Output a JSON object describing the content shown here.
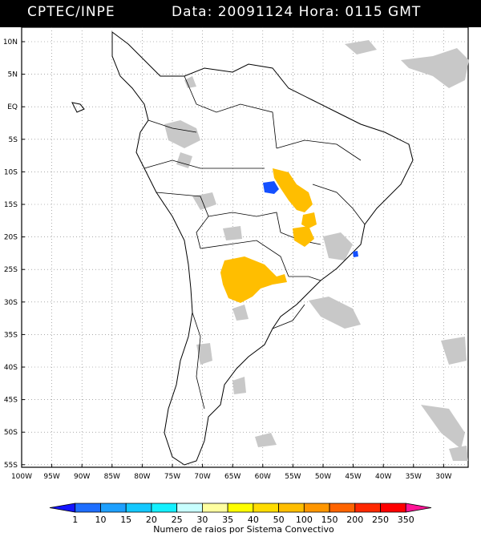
{
  "header": {
    "source": "CPTEC/INPE",
    "datetime": "Data: 20091124 Hora: 0115 GMT"
  },
  "map": {
    "lat_ticks": [
      "10N",
      "5N",
      "EQ",
      "5S",
      "10S",
      "15S",
      "20S",
      "25S",
      "30S",
      "35S",
      "40S",
      "45S",
      "50S",
      "55S"
    ],
    "lon_ticks": [
      "100W",
      "95W",
      "90W",
      "85W",
      "80W",
      "75W",
      "70W",
      "65W",
      "60W",
      "55W",
      "50W",
      "45W",
      "40W",
      "35W",
      "30W"
    ],
    "features": [
      "continent-outline",
      "country-borders",
      "cloud-mask-gray",
      "convective-system-yellow",
      "convective-system-blue"
    ]
  },
  "colorbar": {
    "labels": [
      "1",
      "10",
      "15",
      "20",
      "25",
      "30",
      "35",
      "40",
      "50",
      "100",
      "150",
      "200",
      "250",
      "350"
    ],
    "colors": [
      "#1414ff",
      "#1e6eff",
      "#1ea0ff",
      "#14c8ff",
      "#14f0ff",
      "#c8ffff",
      "#ffffa0",
      "#ffff00",
      "#ffdc00",
      "#ffbe00",
      "#ff9600",
      "#ff6400",
      "#ff2800",
      "#ff0000",
      "#ff1496"
    ],
    "title": "Numero de raios por Sistema Convectivo"
  }
}
